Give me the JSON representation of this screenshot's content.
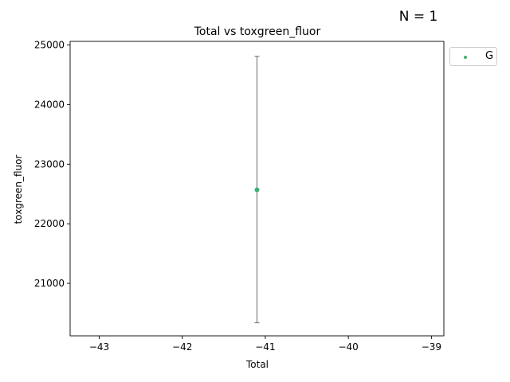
{
  "annotation": "N = 1",
  "chart_data": {
    "type": "scatter",
    "title": "Total vs toxgreen_fluor",
    "xlabel": "Total",
    "ylabel": "toxgreen_fluor",
    "xlim": [
      -43.35,
      -38.85
    ],
    "ylim": [
      20120,
      25060
    ],
    "xticks": [
      -43,
      -42,
      -41,
      -40,
      -39
    ],
    "yticks": [
      21000,
      22000,
      23000,
      24000,
      25000
    ],
    "x_tick_labels": [
      "−43",
      "−42",
      "−41",
      "−40",
      "−39"
    ],
    "y_tick_labels": [
      "21000",
      "22000",
      "23000",
      "24000",
      "25000"
    ],
    "grid": false,
    "legend_position": "upper right, outside",
    "series": [
      {
        "name": "G",
        "color": "#3cb371",
        "points": [
          {
            "x": -41.1,
            "y": 22570,
            "yerr_low": 20340,
            "yerr_high": 24810
          }
        ]
      }
    ],
    "errorbar_color": "#808080"
  }
}
